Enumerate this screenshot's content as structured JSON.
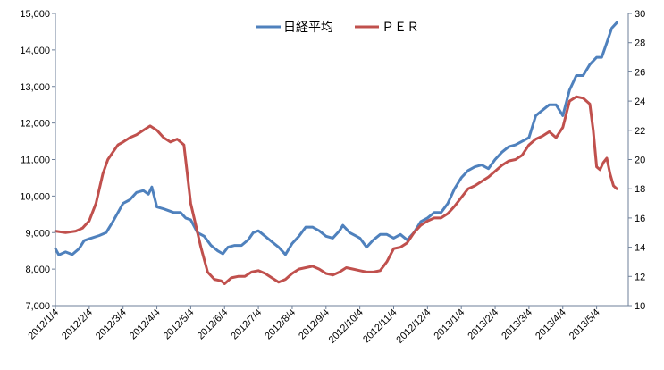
{
  "chart_data": {
    "type": "line",
    "title": "",
    "xlabel": "",
    "ylabel": "",
    "legend_position": "top-center",
    "grid": false,
    "x_ticks": [
      "2012/1/4",
      "2012/2/4",
      "2012/3/4",
      "2012/4/4",
      "2012/5/4",
      "2012/6/4",
      "2012/7/4",
      "2012/8/4",
      "2012/9/4",
      "2012/10/4",
      "2012/11/4",
      "2012/12/4",
      "2013/1/4",
      "2013/2/4",
      "2013/3/4",
      "2013/4/4",
      "2013/5/4"
    ],
    "y_left": {
      "ticks": [
        "7,000",
        "8,000",
        "9,000",
        "10,000",
        "11,000",
        "12,000",
        "13,000",
        "14,000",
        "15,000"
      ],
      "range": [
        7000,
        15000
      ]
    },
    "y_right": {
      "ticks": [
        "10",
        "12",
        "14",
        "16",
        "18",
        "20",
        "22",
        "24",
        "26",
        "28",
        "30"
      ],
      "range": [
        10,
        30
      ]
    },
    "series": [
      {
        "name": "日経平均",
        "axis": "left",
        "color": "#4F81BD",
        "points": [
          [
            0,
            8560
          ],
          [
            0.1,
            8390
          ],
          [
            0.3,
            8470
          ],
          [
            0.5,
            8400
          ],
          [
            0.7,
            8560
          ],
          [
            0.85,
            8780
          ],
          [
            1.0,
            8830
          ],
          [
            1.3,
            8920
          ],
          [
            1.5,
            9000
          ],
          [
            1.7,
            9300
          ],
          [
            1.85,
            9550
          ],
          [
            2.0,
            9800
          ],
          [
            2.2,
            9900
          ],
          [
            2.4,
            10100
          ],
          [
            2.6,
            10150
          ],
          [
            2.75,
            10050
          ],
          [
            2.85,
            10250
          ],
          [
            3.0,
            9700
          ],
          [
            3.2,
            9650
          ],
          [
            3.5,
            9550
          ],
          [
            3.7,
            9550
          ],
          [
            3.85,
            9400
          ],
          [
            4.0,
            9350
          ],
          [
            4.2,
            9000
          ],
          [
            4.4,
            8900
          ],
          [
            4.6,
            8650
          ],
          [
            4.8,
            8500
          ],
          [
            4.95,
            8420
          ],
          [
            5.1,
            8600
          ],
          [
            5.3,
            8650
          ],
          [
            5.5,
            8650
          ],
          [
            5.7,
            8800
          ],
          [
            5.85,
            9000
          ],
          [
            6.0,
            9050
          ],
          [
            6.2,
            8900
          ],
          [
            6.4,
            8750
          ],
          [
            6.6,
            8600
          ],
          [
            6.8,
            8400
          ],
          [
            7.0,
            8700
          ],
          [
            7.2,
            8900
          ],
          [
            7.4,
            9150
          ],
          [
            7.6,
            9150
          ],
          [
            7.8,
            9050
          ],
          [
            8.0,
            8900
          ],
          [
            8.2,
            8850
          ],
          [
            8.4,
            9050
          ],
          [
            8.5,
            9200
          ],
          [
            8.7,
            9000
          ],
          [
            8.9,
            8900
          ],
          [
            9.0,
            8850
          ],
          [
            9.2,
            8600
          ],
          [
            9.4,
            8800
          ],
          [
            9.6,
            8950
          ],
          [
            9.8,
            8950
          ],
          [
            10.0,
            8850
          ],
          [
            10.2,
            8950
          ],
          [
            10.4,
            8800
          ],
          [
            10.6,
            9000
          ],
          [
            10.8,
            9300
          ],
          [
            11.0,
            9400
          ],
          [
            11.2,
            9550
          ],
          [
            11.4,
            9550
          ],
          [
            11.6,
            9800
          ],
          [
            11.8,
            10200
          ],
          [
            12.0,
            10500
          ],
          [
            12.2,
            10700
          ],
          [
            12.4,
            10800
          ],
          [
            12.6,
            10850
          ],
          [
            12.8,
            10750
          ],
          [
            13.0,
            11000
          ],
          [
            13.2,
            11200
          ],
          [
            13.4,
            11350
          ],
          [
            13.6,
            11400
          ],
          [
            13.8,
            11500
          ],
          [
            14.0,
            11600
          ],
          [
            14.2,
            12200
          ],
          [
            14.4,
            12350
          ],
          [
            14.6,
            12500
          ],
          [
            14.8,
            12500
          ],
          [
            15.0,
            12200
          ],
          [
            15.2,
            12900
          ],
          [
            15.4,
            13300
          ],
          [
            15.6,
            13300
          ],
          [
            15.8,
            13600
          ],
          [
            16.0,
            13800
          ],
          [
            16.15,
            13800
          ],
          [
            16.3,
            14200
          ],
          [
            16.45,
            14600
          ],
          [
            16.6,
            14750
          ]
        ]
      },
      {
        "name": "ＰＥＲ",
        "axis": "right",
        "color": "#C0504D",
        "points": [
          [
            0,
            15.1
          ],
          [
            0.3,
            15.0
          ],
          [
            0.6,
            15.1
          ],
          [
            0.8,
            15.3
          ],
          [
            1.0,
            15.8
          ],
          [
            1.2,
            17.0
          ],
          [
            1.4,
            19.0
          ],
          [
            1.55,
            20.0
          ],
          [
            1.7,
            20.5
          ],
          [
            1.85,
            21.0
          ],
          [
            2.0,
            21.2
          ],
          [
            2.2,
            21.5
          ],
          [
            2.4,
            21.7
          ],
          [
            2.6,
            22.0
          ],
          [
            2.8,
            22.3
          ],
          [
            3.0,
            22.0
          ],
          [
            3.2,
            21.5
          ],
          [
            3.4,
            21.2
          ],
          [
            3.6,
            21.4
          ],
          [
            3.8,
            21.0
          ],
          [
            3.9,
            19.0
          ],
          [
            4.0,
            17.0
          ],
          [
            4.1,
            16.0
          ],
          [
            4.3,
            14.0
          ],
          [
            4.5,
            12.3
          ],
          [
            4.7,
            11.8
          ],
          [
            4.9,
            11.7
          ],
          [
            5.0,
            11.5
          ],
          [
            5.2,
            11.9
          ],
          [
            5.4,
            12.0
          ],
          [
            5.6,
            12.0
          ],
          [
            5.8,
            12.3
          ],
          [
            6.0,
            12.4
          ],
          [
            6.2,
            12.2
          ],
          [
            6.4,
            11.9
          ],
          [
            6.6,
            11.6
          ],
          [
            6.8,
            11.8
          ],
          [
            7.0,
            12.2
          ],
          [
            7.2,
            12.5
          ],
          [
            7.4,
            12.6
          ],
          [
            7.6,
            12.7
          ],
          [
            7.8,
            12.5
          ],
          [
            8.0,
            12.2
          ],
          [
            8.2,
            12.1
          ],
          [
            8.4,
            12.3
          ],
          [
            8.6,
            12.6
          ],
          [
            8.8,
            12.5
          ],
          [
            9.0,
            12.4
          ],
          [
            9.2,
            12.3
          ],
          [
            9.4,
            12.3
          ],
          [
            9.6,
            12.4
          ],
          [
            9.8,
            13.0
          ],
          [
            10.0,
            13.9
          ],
          [
            10.2,
            14.0
          ],
          [
            10.4,
            14.3
          ],
          [
            10.6,
            15.0
          ],
          [
            10.8,
            15.5
          ],
          [
            11.0,
            15.8
          ],
          [
            11.2,
            16.0
          ],
          [
            11.4,
            16.0
          ],
          [
            11.6,
            16.3
          ],
          [
            11.8,
            16.8
          ],
          [
            12.0,
            17.4
          ],
          [
            12.2,
            18.0
          ],
          [
            12.4,
            18.2
          ],
          [
            12.6,
            18.5
          ],
          [
            12.8,
            18.8
          ],
          [
            13.0,
            19.2
          ],
          [
            13.2,
            19.6
          ],
          [
            13.4,
            19.9
          ],
          [
            13.6,
            20.0
          ],
          [
            13.8,
            20.3
          ],
          [
            14.0,
            21.0
          ],
          [
            14.2,
            21.4
          ],
          [
            14.4,
            21.6
          ],
          [
            14.6,
            21.9
          ],
          [
            14.8,
            21.5
          ],
          [
            15.0,
            22.2
          ],
          [
            15.2,
            24.0
          ],
          [
            15.4,
            24.3
          ],
          [
            15.6,
            24.2
          ],
          [
            15.8,
            23.8
          ],
          [
            15.9,
            22.0
          ],
          [
            16.0,
            19.5
          ],
          [
            16.1,
            19.3
          ],
          [
            16.2,
            19.8
          ],
          [
            16.3,
            20.1
          ],
          [
            16.4,
            19.0
          ],
          [
            16.5,
            18.2
          ],
          [
            16.6,
            18.0
          ]
        ]
      }
    ]
  }
}
